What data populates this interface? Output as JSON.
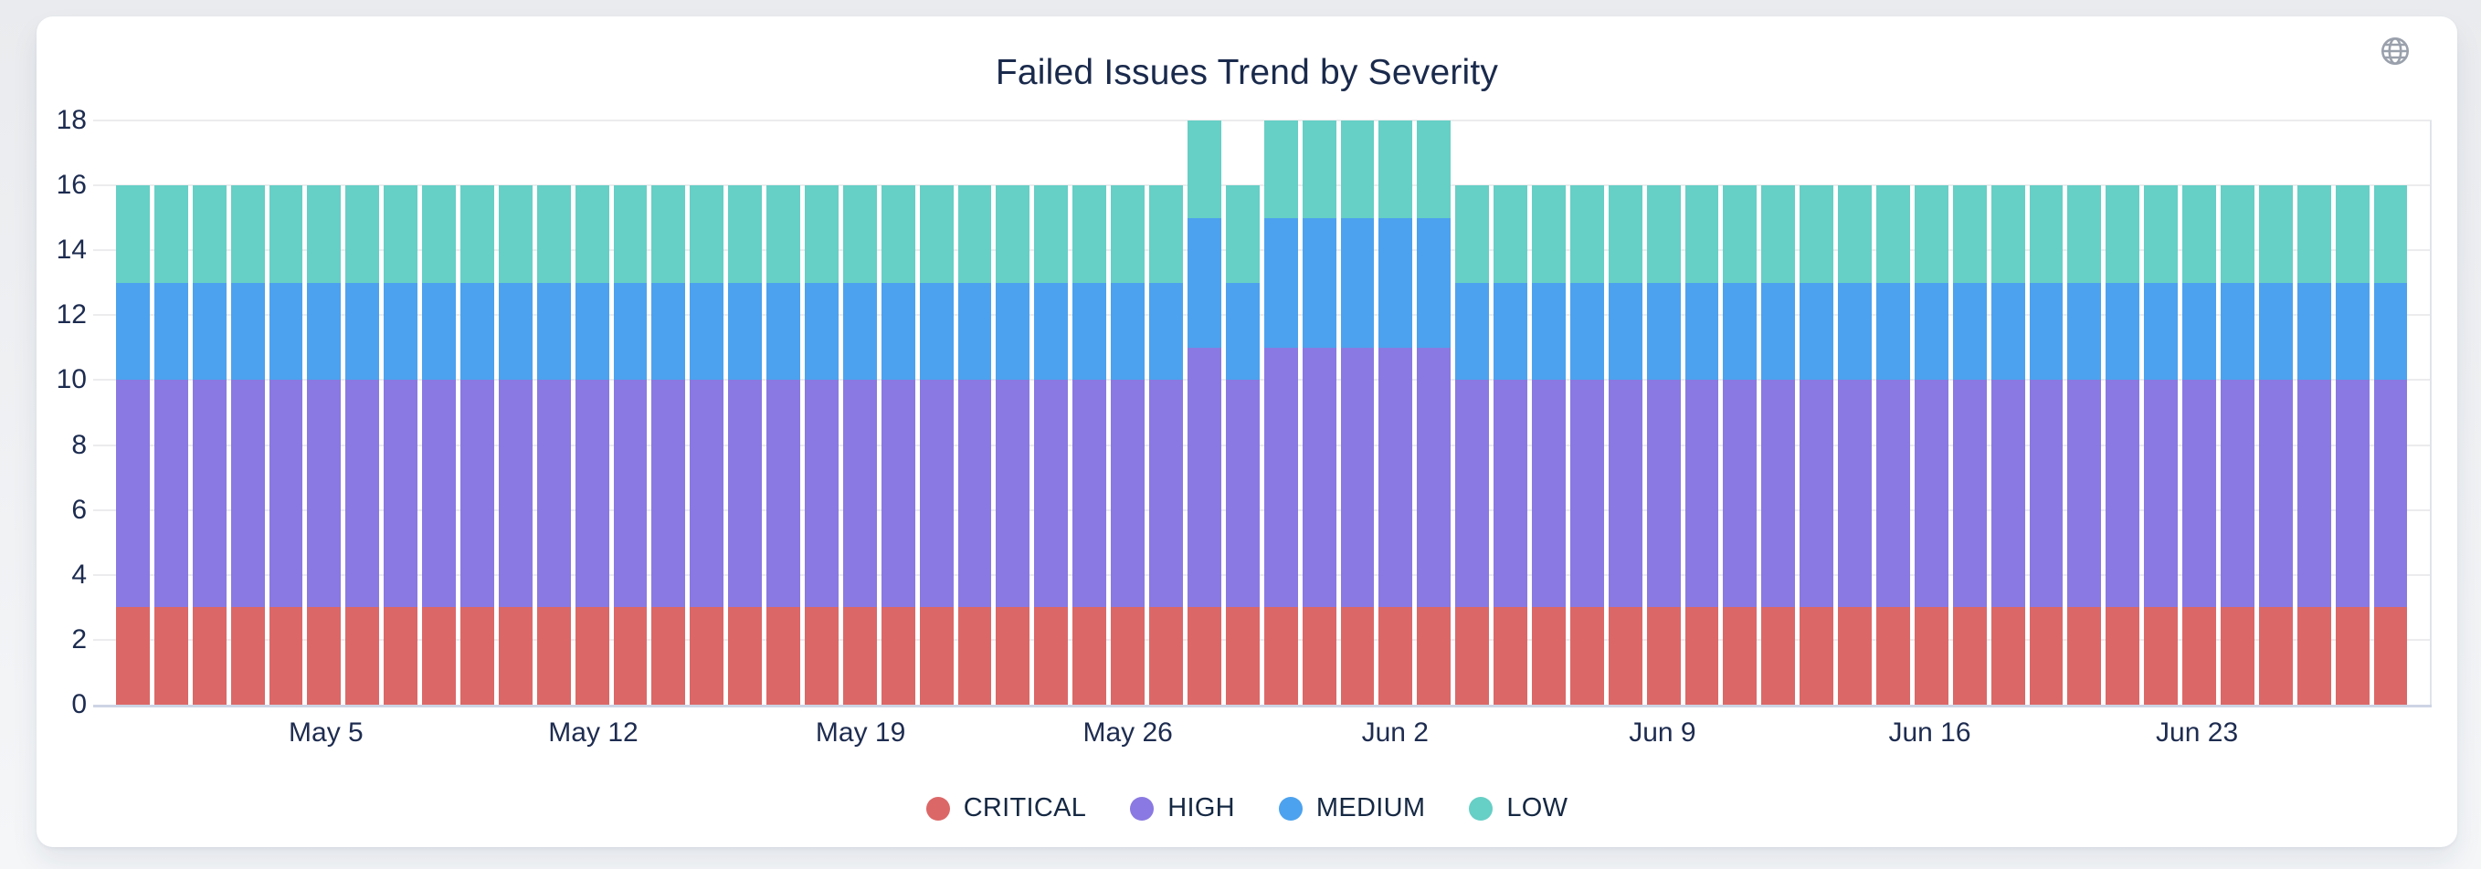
{
  "card": {
    "title": "Failed Issues Trend by Severity"
  },
  "header": {
    "globe_icon": "globe",
    "globe_icon_color": "#9aa1ac"
  },
  "colors": {
    "critical": "#DC6767",
    "high": "#8A79E2",
    "medium": "#4CA2EE",
    "low": "#66CFC6",
    "card_background": "#ffffff",
    "page_background": "#edeff2",
    "text_navy": "#1a2a4c",
    "gridline": "#ececee",
    "axis_line": "#ccd4e4"
  },
  "chart_data": {
    "type": "bar",
    "stacked": true,
    "title": "Failed Issues Trend by Severity",
    "xlabel": "",
    "ylabel": "",
    "ylim": [
      0,
      18
    ],
    "yticks": [
      0,
      2,
      4,
      6,
      8,
      10,
      12,
      14,
      16,
      18
    ],
    "grid": true,
    "legend_position": "bottom",
    "num_bars": 60,
    "x_ticks": [
      {
        "index": 5,
        "label": "May 5"
      },
      {
        "index": 12,
        "label": "May 12"
      },
      {
        "index": 19,
        "label": "May 19"
      },
      {
        "index": 26,
        "label": "May 26"
      },
      {
        "index": 33,
        "label": "Jun 2"
      },
      {
        "index": 40,
        "label": "Jun 9"
      },
      {
        "index": 47,
        "label": "Jun 16"
      },
      {
        "index": 54,
        "label": "Jun 23"
      }
    ],
    "series": [
      {
        "name": "CRITICAL",
        "color": "#DC6767",
        "values": [
          3,
          3,
          3,
          3,
          3,
          3,
          3,
          3,
          3,
          3,
          3,
          3,
          3,
          3,
          3,
          3,
          3,
          3,
          3,
          3,
          3,
          3,
          3,
          3,
          3,
          3,
          3,
          3,
          3,
          3,
          3,
          3,
          3,
          3,
          3,
          3,
          3,
          3,
          3,
          3,
          3,
          3,
          3,
          3,
          3,
          3,
          3,
          3,
          3,
          3,
          3,
          3,
          3,
          3,
          3,
          3,
          3,
          3,
          3,
          3
        ]
      },
      {
        "name": "HIGH",
        "color": "#8A79E2",
        "values": [
          7,
          7,
          7,
          7,
          7,
          7,
          7,
          7,
          7,
          7,
          7,
          7,
          7,
          7,
          7,
          7,
          7,
          7,
          7,
          7,
          7,
          7,
          7,
          7,
          7,
          7,
          7,
          7,
          8,
          7,
          8,
          8,
          8,
          8,
          8,
          7,
          7,
          7,
          7,
          7,
          7,
          7,
          7,
          7,
          7,
          7,
          7,
          7,
          7,
          7,
          7,
          7,
          7,
          7,
          7,
          7,
          7,
          7,
          7,
          7
        ]
      },
      {
        "name": "MEDIUM",
        "color": "#4CA2EE",
        "values": [
          3,
          3,
          3,
          3,
          3,
          3,
          3,
          3,
          3,
          3,
          3,
          3,
          3,
          3,
          3,
          3,
          3,
          3,
          3,
          3,
          3,
          3,
          3,
          3,
          3,
          3,
          3,
          3,
          4,
          3,
          4,
          4,
          4,
          4,
          4,
          3,
          3,
          3,
          3,
          3,
          3,
          3,
          3,
          3,
          3,
          3,
          3,
          3,
          3,
          3,
          3,
          3,
          3,
          3,
          3,
          3,
          3,
          3,
          3,
          3
        ]
      },
      {
        "name": "LOW",
        "color": "#66CFC6",
        "values": [
          3,
          3,
          3,
          3,
          3,
          3,
          3,
          3,
          3,
          3,
          3,
          3,
          3,
          3,
          3,
          3,
          3,
          3,
          3,
          3,
          3,
          3,
          3,
          3,
          3,
          3,
          3,
          3,
          3,
          3,
          3,
          3,
          3,
          3,
          3,
          3,
          3,
          3,
          3,
          3,
          3,
          3,
          3,
          3,
          3,
          3,
          3,
          3,
          3,
          3,
          3,
          3,
          3,
          3,
          3,
          3,
          3,
          3,
          3,
          3
        ]
      }
    ]
  }
}
